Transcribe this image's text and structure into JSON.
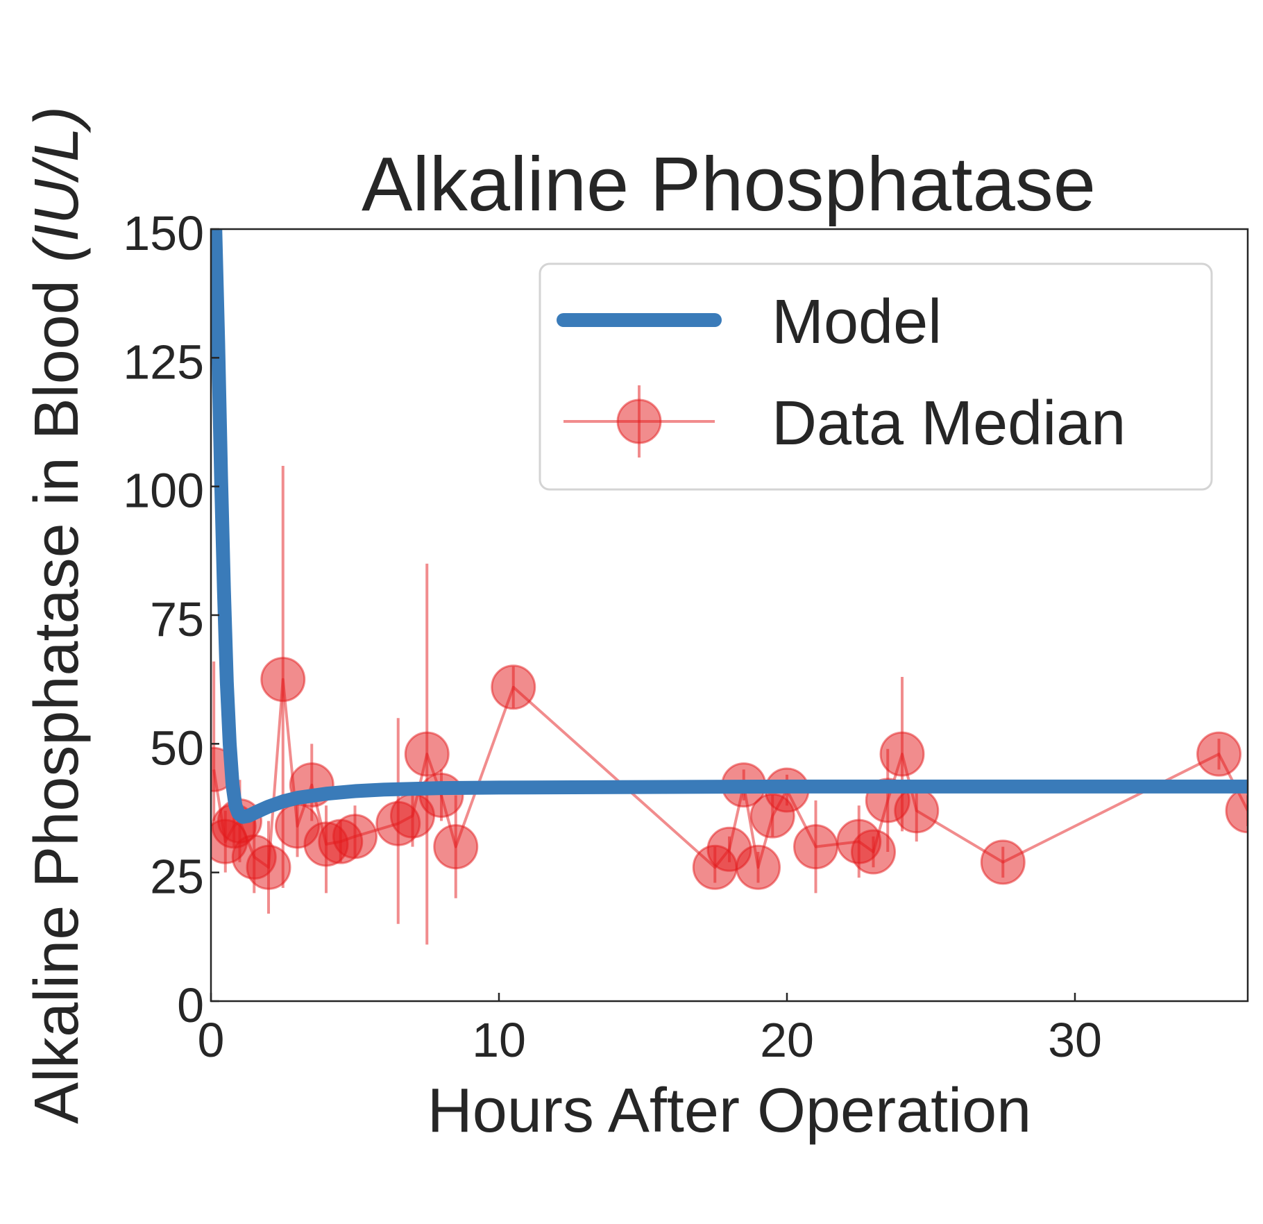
{
  "chart_data": {
    "type": "line",
    "title": "Alkaline Phosphatase",
    "xlabel": "Hours After Operation",
    "ylabel_main": "Alkaline Phosphatase in Blood ",
    "ylabel_unit": "(IU/L)",
    "xlim": [
      0,
      36
    ],
    "ylim": [
      0,
      150
    ],
    "x_ticks": [
      0,
      10,
      20,
      30
    ],
    "y_ticks": [
      0,
      25,
      50,
      75,
      100,
      125,
      150
    ],
    "grid": false,
    "legend_position": "top-right",
    "colors": {
      "model": "#3a7bb9",
      "data": "#e41a1c",
      "axes": "#262626",
      "legend_border": "#d4d4d4"
    },
    "series": [
      {
        "name": "Model",
        "kind": "line",
        "x": [
          0.15,
          0.25,
          0.35,
          0.45,
          0.55,
          0.65,
          0.75,
          0.85,
          0.95,
          1.1,
          1.3,
          1.6,
          2,
          2.5,
          3,
          4,
          5,
          6,
          8,
          10,
          15,
          20,
          25,
          30,
          36
        ],
        "y": [
          150,
          128,
          102,
          80,
          62,
          50,
          42,
          38,
          36.5,
          35.8,
          36,
          36.8,
          37.8,
          38.8,
          39.5,
          40.3,
          40.8,
          41.1,
          41.4,
          41.5,
          41.6,
          41.7,
          41.7,
          41.7,
          41.7
        ]
      },
      {
        "name": "Data Median",
        "kind": "errorbar",
        "points": [
          {
            "x": 0.1,
            "y": 45,
            "lo": 35,
            "hi": 66
          },
          {
            "x": 0.5,
            "y": 31,
            "lo": 25,
            "hi": 37
          },
          {
            "x": 0.8,
            "y": 34,
            "lo": 30,
            "hi": 38
          },
          {
            "x": 1.0,
            "y": 35,
            "lo": 27,
            "hi": 43
          },
          {
            "x": 1.5,
            "y": 28,
            "lo": 21,
            "hi": 36
          },
          {
            "x": 2.0,
            "y": 26,
            "lo": 17,
            "hi": 35
          },
          {
            "x": 2.5,
            "y": 62.5,
            "lo": 22,
            "hi": 104
          },
          {
            "x": 3.0,
            "y": 34,
            "lo": 28,
            "hi": 40
          },
          {
            "x": 3.5,
            "y": 42,
            "lo": 35,
            "hi": 50
          },
          {
            "x": 4.0,
            "y": 30.5,
            "lo": 21,
            "hi": 38
          },
          {
            "x": 4.5,
            "y": 31,
            "lo": 27,
            "hi": 35
          },
          {
            "x": 5.0,
            "y": 32,
            "lo": 28,
            "hi": 38
          },
          {
            "x": 6.5,
            "y": 34.5,
            "lo": 15,
            "hi": 55
          },
          {
            "x": 7.0,
            "y": 36,
            "lo": 30,
            "hi": 42
          },
          {
            "x": 7.5,
            "y": 48,
            "lo": 11,
            "hi": 85
          },
          {
            "x": 8.0,
            "y": 40,
            "lo": 35,
            "hi": 45
          },
          {
            "x": 8.5,
            "y": 30,
            "lo": 20,
            "hi": 40
          },
          {
            "x": 10.5,
            "y": 61,
            "lo": 57,
            "hi": 65
          },
          {
            "x": 17.5,
            "y": 26,
            "lo": 23,
            "hi": 30
          },
          {
            "x": 18.0,
            "y": 29.5,
            "lo": 27,
            "hi": 32
          },
          {
            "x": 18.5,
            "y": 42,
            "lo": 39,
            "hi": 45
          },
          {
            "x": 19.0,
            "y": 26,
            "lo": 23,
            "hi": 29
          },
          {
            "x": 19.5,
            "y": 36,
            "lo": 32,
            "hi": 40
          },
          {
            "x": 20.0,
            "y": 41,
            "lo": 38,
            "hi": 44
          },
          {
            "x": 21.0,
            "y": 30,
            "lo": 21,
            "hi": 39
          },
          {
            "x": 22.5,
            "y": 31,
            "lo": 24,
            "hi": 38
          },
          {
            "x": 23.0,
            "y": 29,
            "lo": 26,
            "hi": 32
          },
          {
            "x": 23.5,
            "y": 39,
            "lo": 29,
            "hi": 49
          },
          {
            "x": 24.0,
            "y": 48,
            "lo": 33,
            "hi": 63
          },
          {
            "x": 24.5,
            "y": 37,
            "lo": 31,
            "hi": 43
          },
          {
            "x": 27.5,
            "y": 27,
            "lo": 24,
            "hi": 30
          },
          {
            "x": 35.0,
            "y": 48,
            "lo": 45,
            "hi": 51
          },
          {
            "x": 36.0,
            "y": 37,
            "lo": 34,
            "hi": 40
          }
        ]
      }
    ]
  }
}
